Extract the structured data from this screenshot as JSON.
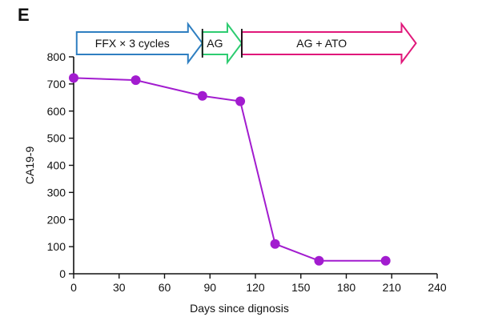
{
  "panel_label": "E",
  "colors": {
    "series": "#a21ccf",
    "axis": "#111111",
    "phase_ffx": "#2f7fc1",
    "phase_ag": "#2ecc71",
    "phase_ag_ato": "#e0187a",
    "phase_divider": "#111111"
  },
  "chart_data": {
    "type": "line",
    "title": "",
    "xlabel": "Days since dignosis",
    "ylabel": "CA19-9",
    "xlim": [
      0,
      240
    ],
    "ylim": [
      0,
      800
    ],
    "xticks": [
      0,
      30,
      60,
      90,
      120,
      150,
      180,
      210,
      240
    ],
    "yticks": [
      0,
      100,
      200,
      300,
      400,
      500,
      600,
      700,
      800
    ],
    "series": [
      {
        "name": "CA19-9",
        "x": [
          0,
          41,
          85,
          110,
          133,
          162,
          206
        ],
        "y": [
          722,
          714,
          656,
          636,
          110,
          48,
          48
        ]
      }
    ],
    "phases": [
      {
        "label": "FFX × 3 cycles",
        "start": 2,
        "end": 85,
        "color_key": "phase_ffx"
      },
      {
        "label": "AG",
        "start": 85,
        "end": 111,
        "color_key": "phase_ag"
      },
      {
        "label": "AG + ATO",
        "start": 111,
        "end": 226,
        "color_key": "phase_ag_ato"
      }
    ]
  }
}
